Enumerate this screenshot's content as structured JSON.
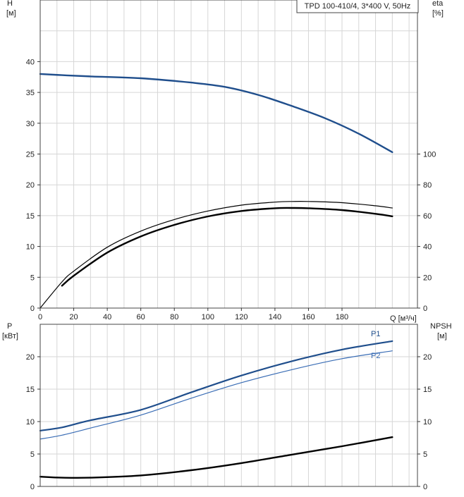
{
  "chart_data": [
    {
      "type": "line",
      "panel": "head-efficiency",
      "title": "TPD 100-410/4, 3*400 V, 50Hz",
      "y_left_label": [
        "H",
        "[м]"
      ],
      "y_right_label": [
        "eta",
        "[%]"
      ],
      "x_label": "Q [м³/ч]",
      "x_ticks": [
        "0",
        "20",
        "40",
        "60",
        "80",
        "100",
        "120",
        "140",
        "160",
        "180"
      ],
      "y_left_ticks": [
        "0",
        "5",
        "10",
        "15",
        "20",
        "25",
        "30",
        "35",
        "40"
      ],
      "y_right_ticks": [
        "0",
        "20",
        "40",
        "60",
        "80",
        "100"
      ],
      "xlim": [
        0,
        225
      ],
      "ylim_left": [
        0,
        50
      ],
      "ylim_right": [
        0,
        200
      ],
      "grid": true,
      "series": [
        {
          "axis": "left",
          "color": "#1f4e8c",
          "x": [
            0,
            13,
            30,
            60,
            90,
            110,
            130,
            150,
            170,
            190,
            210
          ],
          "y": [
            38.0,
            37.8,
            37.6,
            37.3,
            36.6,
            35.9,
            34.6,
            32.8,
            30.8,
            28.3,
            25.3
          ]
        },
        {
          "axis": "right",
          "color": "#000000",
          "x": [
            13,
            20,
            40,
            60,
            80,
            100,
            120,
            140,
            150,
            160,
            180,
            200,
            210
          ],
          "y": [
            14.5,
            21,
            36,
            46.5,
            54,
            59.5,
            63,
            64.8,
            65,
            64.8,
            63.6,
            61.2,
            59.6
          ]
        },
        {
          "axis": "right",
          "color": "#000000",
          "x": [
            0,
            13,
            20,
            40,
            60,
            80,
            100,
            120,
            140,
            150,
            160,
            180,
            200,
            210
          ],
          "y": [
            0,
            17,
            24,
            39.5,
            50,
            57.5,
            63,
            66.8,
            68.8,
            69.2,
            69.2,
            68.4,
            66.4,
            65
          ]
        }
      ]
    },
    {
      "type": "line",
      "panel": "power-npsh",
      "y_left_label": [
        "P",
        "[кВт]"
      ],
      "y_right_label": [
        "NPSH",
        "[м]"
      ],
      "y_left_ticks": [
        "0",
        "5",
        "10",
        "15",
        "20"
      ],
      "y_right_ticks": [
        "0",
        "5",
        "10",
        "15",
        "20"
      ],
      "xlim": [
        0,
        225
      ],
      "ylim_left": [
        0,
        25
      ],
      "ylim_right": [
        0,
        25
      ],
      "grid": true,
      "series": [
        {
          "name": "P1",
          "axis": "left",
          "color": "#1f4e8c",
          "x": [
            0,
            13,
            30,
            60,
            90,
            120,
            150,
            180,
            210
          ],
          "y": [
            8.6,
            9.1,
            10.2,
            11.8,
            14.5,
            17.1,
            19.3,
            21.1,
            22.4
          ]
        },
        {
          "name": "P2",
          "axis": "left",
          "color": "#3a6db5",
          "x": [
            0,
            13,
            30,
            60,
            90,
            120,
            150,
            180,
            210
          ],
          "y": [
            7.3,
            7.9,
            9.0,
            11.0,
            13.6,
            16.0,
            18.0,
            19.7,
            20.9
          ]
        },
        {
          "axis": "right",
          "color": "#000000",
          "x": [
            0,
            13,
            30,
            60,
            90,
            120,
            150,
            180,
            210
          ],
          "y": [
            1.5,
            1.35,
            1.35,
            1.7,
            2.5,
            3.6,
            4.9,
            6.2,
            7.6
          ]
        }
      ]
    }
  ]
}
